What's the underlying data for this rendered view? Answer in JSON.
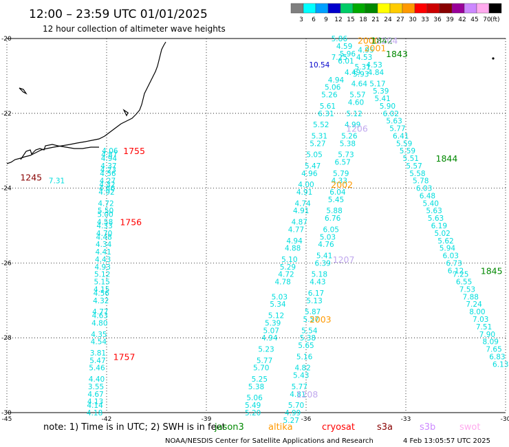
{
  "header": {
    "title": "12:00 – 23:59 UTC 01/01/2025",
    "subtitle": "12 hour collection of altimeter wave heights"
  },
  "colorbar": {
    "labels": [
      "3",
      "6",
      "9",
      "12",
      "15",
      "18",
      "21",
      "24",
      "27",
      "30",
      "33",
      "36",
      "39",
      "42",
      "45",
      "70",
      "(ft)"
    ],
    "colors": [
      "#7f7f7f",
      "#00ffff",
      "#00a0ff",
      "#0000cc",
      "#00cc66",
      "#00aa00",
      "#008800",
      "#ffff00",
      "#ffcc00",
      "#ff9900",
      "#ff0000",
      "#cc0000",
      "#880000",
      "#990099",
      "#cc88ff",
      "#ffaaee",
      "#000000"
    ]
  },
  "map": {
    "lon_ticks": [
      "-45",
      "-42",
      "-39",
      "-36",
      "-33",
      "-30"
    ],
    "lat_ticks": [
      "-20",
      "-22",
      "-24",
      "-26",
      "-28",
      "-30"
    ],
    "lon_range": [
      -45,
      -30
    ],
    "lat_range": [
      -30,
      -20
    ],
    "grid": "dotted"
  },
  "tracks": [
    {
      "color": "#00dddd",
      "points": [
        [
          "-43.5",
          "-23.8",
          "7.31"
        ],
        [
          "-41.9",
          "-23.0",
          "4.06"
        ],
        [
          "-41.92",
          "-23.1",
          "4.87"
        ],
        [
          "-41.93",
          "-23.2",
          "4.94"
        ],
        [
          "-41.94",
          "-23.4",
          "4.37"
        ],
        [
          "-41.95",
          "-23.5",
          "4.23"
        ],
        [
          "-41.96",
          "-23.6",
          "4.56"
        ],
        [
          "-41.97",
          "-23.8",
          "4.27"
        ],
        [
          "-41.98",
          "-23.9",
          "4.32"
        ],
        [
          "-41.99",
          "-24.0",
          "4.86"
        ],
        [
          "-42.0",
          "-24.1",
          "4.92"
        ],
        [
          "-42.02",
          "-24.4",
          "4.72"
        ],
        [
          "-42.03",
          "-24.6",
          "5.50"
        ],
        [
          "-42.04",
          "-24.7",
          "5.00"
        ],
        [
          "-42.05",
          "-24.9",
          "4.58"
        ],
        [
          "-42.06",
          "-25.0",
          "4.33"
        ],
        [
          "-42.07",
          "-25.2",
          "4.70"
        ],
        [
          "-42.08",
          "-25.3",
          "4.48"
        ],
        [
          "-42.09",
          "-25.5",
          "4.34"
        ],
        [
          "-42.1",
          "-25.7",
          "4.41"
        ],
        [
          "-42.11",
          "-25.9",
          "4.43"
        ],
        [
          "-42.12",
          "-26.1",
          "4.93"
        ],
        [
          "-42.13",
          "-26.3",
          "5.12"
        ],
        [
          "-42.14",
          "-26.5",
          "5.15"
        ],
        [
          "-42.15",
          "-26.7",
          "4.15"
        ],
        [
          "-42.16",
          "-26.8",
          "4.56"
        ],
        [
          "-42.17",
          "-27.0",
          "4.32"
        ],
        [
          "-42.19",
          "-27.3",
          "4.77"
        ],
        [
          "-42.2",
          "-27.4",
          "4.63"
        ],
        [
          "-42.21",
          "-27.6",
          "4.80"
        ],
        [
          "-42.23",
          "-27.9",
          "4.35"
        ],
        [
          "-42.24",
          "-28.1",
          "4.54"
        ],
        [
          "-42.26",
          "-28.4",
          "3.81"
        ],
        [
          "-42.27",
          "-28.6",
          "5.47"
        ],
        [
          "-42.29",
          "-28.8",
          "5.46"
        ],
        [
          "-42.3",
          "-29.1",
          "4.40"
        ],
        [
          "-42.32",
          "-29.3",
          "3.55"
        ],
        [
          "-42.33",
          "-29.5",
          "4.67"
        ],
        [
          "-42.34",
          "-29.7",
          "4.13"
        ],
        [
          "-42.35",
          "-29.8",
          "4.14"
        ],
        [
          "-42.36",
          "-30.0",
          "4.18"
        ]
      ]
    },
    {
      "color": "#00dddd",
      "points": [
        [
          "-35.0",
          "-20.0",
          "5.86"
        ],
        [
          "-34.85",
          "-20.2",
          "4.59"
        ],
        [
          "-35.0",
          "-20.5",
          "7.25"
        ],
        [
          "-34.75",
          "-20.4",
          "5.96"
        ],
        [
          "-34.8",
          "-20.6",
          "6.01"
        ],
        [
          "-34.6",
          "-20.9",
          "4.49"
        ],
        [
          "-35.1",
          "-21.1",
          "4.94"
        ],
        [
          "-35.2",
          "-21.3",
          "5.06"
        ],
        [
          "-35.3",
          "-21.5",
          "5.26"
        ],
        [
          "-35.35",
          "-21.8",
          "5.61"
        ],
        [
          "-35.4",
          "-22.0",
          "6.31"
        ],
        [
          "-35.55",
          "-22.3",
          "5.52"
        ],
        [
          "-35.6",
          "-22.6",
          "5.31"
        ],
        [
          "-35.65",
          "-22.8",
          "5.27"
        ],
        [
          "-35.75",
          "-23.1",
          "5.05"
        ],
        [
          "-35.8",
          "-23.4",
          "5.47"
        ],
        [
          "-35.9",
          "-23.6",
          "4.96"
        ],
        [
          "-36.0",
          "-23.9",
          "4.00"
        ],
        [
          "-36.05",
          "-24.1",
          "4.91"
        ],
        [
          "-36.1",
          "-24.4",
          "4.74"
        ],
        [
          "-36.15",
          "-24.6",
          "4.91"
        ],
        [
          "-36.2",
          "-24.9",
          "4.87"
        ],
        [
          "-36.3",
          "-25.1",
          "4.77"
        ],
        [
          "-36.35",
          "-25.4",
          "4.94"
        ],
        [
          "-36.4",
          "-25.6",
          "4.88"
        ],
        [
          "-36.5",
          "-25.9",
          "5.10"
        ],
        [
          "-36.55",
          "-26.1",
          "5.29"
        ],
        [
          "-36.6",
          "-26.3",
          "4.72"
        ],
        [
          "-36.7",
          "-26.5",
          "4.78"
        ],
        [
          "-36.8",
          "-26.9",
          "5.03"
        ],
        [
          "-36.85",
          "-27.1",
          "5.34"
        ],
        [
          "-36.9",
          "-27.4",
          "5.12"
        ],
        [
          "-37.0",
          "-27.6",
          "5.39"
        ],
        [
          "-37.05",
          "-27.8",
          "5.07"
        ],
        [
          "-37.1",
          "-28.0",
          "4.94"
        ],
        [
          "-37.2",
          "-28.3",
          "5.23"
        ],
        [
          "-37.25",
          "-28.6",
          "5.77"
        ],
        [
          "-37.35",
          "-28.8",
          "5.70"
        ],
        [
          "-37.4",
          "-29.1",
          "5.25"
        ],
        [
          "-37.5",
          "-29.3",
          "5.38"
        ],
        [
          "-37.55",
          "-29.6",
          "5.06"
        ],
        [
          "-37.6",
          "-29.8",
          "5.49"
        ],
        [
          "-37.6",
          "-30.0",
          "5.20"
        ]
      ]
    },
    {
      "color": "#00dddd",
      "points": [
        [
          "-34.2",
          "-20.3",
          "4.95"
        ],
        [
          "-34.25",
          "-20.5",
          "4.53"
        ],
        [
          "-34.3",
          "-20.75",
          "5.31"
        ],
        [
          "-34.35",
          "-20.95",
          "5.93"
        ],
        [
          "-34.4",
          "-21.2",
          "4.64"
        ],
        [
          "-34.45",
          "-21.5",
          "5.57"
        ],
        [
          "-34.5",
          "-21.7",
          "4.60"
        ],
        [
          "-34.55",
          "-22.0",
          "5.12"
        ],
        [
          "-34.6",
          "-22.3",
          "4.99"
        ],
        [
          "-34.7",
          "-22.6",
          "5.26"
        ],
        [
          "-34.75",
          "-22.8",
          "5.38"
        ],
        [
          "-34.8",
          "-23.1",
          "5.73"
        ],
        [
          "-34.9",
          "-23.3",
          "6.57"
        ],
        [
          "-34.95",
          "-23.6",
          "5.79"
        ],
        [
          "-35.0",
          "-23.8",
          "4.33"
        ],
        [
          "-35.05",
          "-24.1",
          "6.04"
        ],
        [
          "-35.1",
          "-24.3",
          "5.45"
        ],
        [
          "-35.15",
          "-24.6",
          "5.88"
        ],
        [
          "-35.2",
          "-24.8",
          "6.76"
        ],
        [
          "-35.25",
          "-25.1",
          "6.05"
        ],
        [
          "-35.35",
          "-25.3",
          "5.03"
        ],
        [
          "-35.4",
          "-25.5",
          "4.76"
        ],
        [
          "-35.45",
          "-25.8",
          "5.41"
        ],
        [
          "-35.5",
          "-26.0",
          "6.39"
        ],
        [
          "-35.6",
          "-26.3",
          "5.18"
        ],
        [
          "-35.65",
          "-26.5",
          "4.43"
        ],
        [
          "-35.7",
          "-26.8",
          "6.17"
        ],
        [
          "-35.75",
          "-27.0",
          "5.13"
        ],
        [
          "-35.8",
          "-27.3",
          "5.87"
        ],
        [
          "-35.85",
          "-27.5",
          "5.57"
        ],
        [
          "-35.9",
          "-27.8",
          "5.54"
        ],
        [
          "-35.95",
          "-28.0",
          "5.38"
        ],
        [
          "-36.0",
          "-28.2",
          "5.65"
        ],
        [
          "-36.05",
          "-28.5",
          "5.16"
        ],
        [
          "-36.1",
          "-28.8",
          "4.82"
        ],
        [
          "-36.15",
          "-29.0",
          "5.43"
        ],
        [
          "-36.2",
          "-29.3",
          "5.77"
        ],
        [
          "-36.25",
          "-29.5",
          "4.81"
        ],
        [
          "-36.3",
          "-29.8",
          "5.70"
        ],
        [
          "-36.4",
          "-30.0",
          "4.99"
        ],
        [
          "-36.45",
          "-30.2",
          "5.27"
        ]
      ]
    },
    {
      "color": "#00dddd",
      "points": [
        [
          "-33.95",
          "-20.7",
          "4.53"
        ],
        [
          "-33.9",
          "-20.9",
          "4.84"
        ],
        [
          "-33.85",
          "-21.2",
          "5.17"
        ],
        [
          "-33.75",
          "-21.4",
          "5.39"
        ],
        [
          "-33.7",
          "-21.6",
          "5.41"
        ],
        [
          "-33.55",
          "-21.8",
          "5.90"
        ],
        [
          "-33.45",
          "-22.0",
          "6.02"
        ],
        [
          "-33.35",
          "-22.2",
          "5.63"
        ],
        [
          "-33.25",
          "-22.4",
          "5.77"
        ],
        [
          "-33.15",
          "-22.6",
          "6.41"
        ],
        [
          "-33.05",
          "-22.8",
          "5.59"
        ],
        [
          "-32.95",
          "-23.0",
          "5.59"
        ],
        [
          "-32.85",
          "-23.2",
          "5.51"
        ],
        [
          "-32.75",
          "-23.4",
          "5.57"
        ],
        [
          "-32.65",
          "-23.6",
          "5.58"
        ],
        [
          "-32.55",
          "-23.8",
          "5.78"
        ],
        [
          "-32.45",
          "-24.0",
          "6.03"
        ],
        [
          "-32.35",
          "-24.2",
          "6.48"
        ],
        [
          "-32.25",
          "-24.4",
          "5.40"
        ],
        [
          "-32.15",
          "-24.6",
          "5.63"
        ],
        [
          "-32.1",
          "-24.8",
          "5.63"
        ],
        [
          "-32.0",
          "-25.0",
          "6.19"
        ],
        [
          "-31.9",
          "-25.2",
          "5.02"
        ],
        [
          "-31.8",
          "-25.4",
          "5.62"
        ],
        [
          "-31.75",
          "-25.6",
          "5.94"
        ],
        [
          "-31.65",
          "-25.8",
          "6.03"
        ],
        [
          "-31.55",
          "-26.0",
          "6.73"
        ],
        [
          "-31.5",
          "-26.2",
          "6.12"
        ],
        [
          "-31.35",
          "-26.3",
          "7.25"
        ],
        [
          "-31.25",
          "-26.5",
          "6.55"
        ],
        [
          "-31.15",
          "-26.7",
          "7.53"
        ],
        [
          "-31.05",
          "-26.9",
          "7.88"
        ],
        [
          "-30.95",
          "-27.1",
          "7.24"
        ],
        [
          "-30.85",
          "-27.3",
          "8.00"
        ],
        [
          "-30.75",
          "-27.5",
          "7.03"
        ],
        [
          "-30.65",
          "-27.7",
          "7.51"
        ],
        [
          "-30.55",
          "-27.9",
          "7.90"
        ],
        [
          "-30.45",
          "-28.1",
          "8.09"
        ],
        [
          "-30.35",
          "-28.3",
          "7.65"
        ],
        [
          "-30.25",
          "-28.5",
          "6.83"
        ],
        [
          "-30.15",
          "-28.7",
          "6.13"
        ]
      ]
    }
  ],
  "highlight_points": [
    {
      "lon": "-35.6",
      "lat": "-20.7",
      "value": "10.54",
      "color": "#0000cc"
    }
  ],
  "time_labels": [
    {
      "lon": "-44.6",
      "lat": "-23.7",
      "text": "1245",
      "color": "#880000"
    },
    {
      "lon": "-41.5",
      "lat": "-23.0",
      "text": "1755",
      "color": "#ff0000"
    },
    {
      "lon": "-41.6",
      "lat": "-24.9",
      "text": "1756",
      "color": "#ff0000"
    },
    {
      "lon": "-41.8",
      "lat": "-28.5",
      "text": "1757",
      "color": "#ff0000"
    },
    {
      "lon": "-34.45",
      "lat": "-20.05",
      "text": "2000",
      "color": "#ff9900"
    },
    {
      "lon": "-34.25",
      "lat": "-20.25",
      "text": "2001",
      "color": "#ff9900"
    },
    {
      "lon": "-35.25",
      "lat": "-23.9",
      "text": "2002",
      "color": "#ff9900"
    },
    {
      "lon": "-35.9",
      "lat": "-27.5",
      "text": "2003",
      "color": "#ff9900"
    },
    {
      "lon": "-34.05",
      "lat": "-20.05",
      "text": "1842",
      "color": "#008800"
    },
    {
      "lon": "-33.6",
      "lat": "-20.4",
      "text": "1843",
      "color": "#008800"
    },
    {
      "lon": "-32.1",
      "lat": "-23.2",
      "text": "1844",
      "color": "#008800"
    },
    {
      "lon": "-30.75",
      "lat": "-26.2",
      "text": "1845",
      "color": "#008800"
    },
    {
      "lon": "-33.9",
      "lat": "-20.05",
      "text": "1204",
      "color": "#c0a8ee"
    },
    {
      "lon": "-34.8",
      "lat": "-22.4",
      "text": "1206",
      "color": "#c0a8ee"
    },
    {
      "lon": "-35.2",
      "lat": "-25.9",
      "text": "1207",
      "color": "#c0a8ee"
    },
    {
      "lon": "-36.3",
      "lat": "-29.5",
      "text": "1208",
      "color": "#c0a8ee"
    }
  ],
  "footer": {
    "note": "note:  1) Time is in UTC;  2) SWH is in feet",
    "satellites": [
      {
        "name": "jason3",
        "color": "#008800"
      },
      {
        "name": "altika",
        "color": "#ff9900"
      },
      {
        "name": "cryosat",
        "color": "#ff0000"
      },
      {
        "name": "s3a",
        "color": "#880000"
      },
      {
        "name": "s3b",
        "color": "#cc88ff"
      },
      {
        "name": "swot",
        "color": "#ffaaee"
      }
    ],
    "credit": "NOAA/NESDIS Center for Satellite Applications and Research",
    "timestamp": "4 Feb 13:05:57 UTC 2025"
  }
}
